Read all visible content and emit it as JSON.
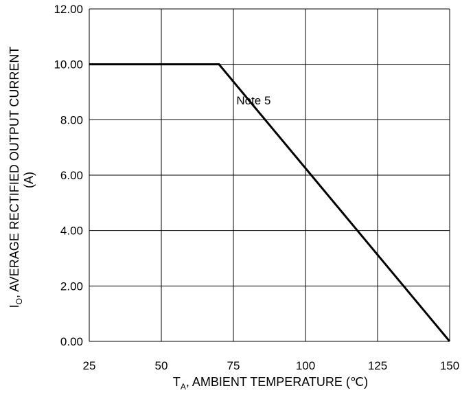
{
  "chart_data": {
    "type": "line",
    "x_label_prefix": "T",
    "x_label_subscript": "A",
    "x_label_rest": ", AMBIENT TEMPERATURE (℃)",
    "y_label_prefix": "I",
    "y_label_subscript": "O",
    "y_label_line1_rest": ", AVERAGE RECTIFIED OUTPUT CURRENT",
    "y_label_line2": "(A)",
    "xlim": [
      25,
      150
    ],
    "ylim": [
      0,
      12
    ],
    "x_ticks": [
      25,
      50,
      75,
      100,
      125,
      150
    ],
    "x_tick_labels": [
      "25",
      "50",
      "75",
      "100",
      "125",
      "150"
    ],
    "y_ticks": [
      0,
      2,
      4,
      6,
      8,
      10,
      12
    ],
    "y_tick_labels": [
      "0.00",
      "2.00",
      "4.00",
      "6.00",
      "8.00",
      "10.00",
      "12.00"
    ],
    "grid": true,
    "series": [
      {
        "x": [
          25,
          70,
          150
        ],
        "y": [
          10,
          10,
          0
        ]
      }
    ],
    "annotations": [
      {
        "text": "Note 5",
        "x": 82,
        "y": 8.55
      }
    ]
  }
}
